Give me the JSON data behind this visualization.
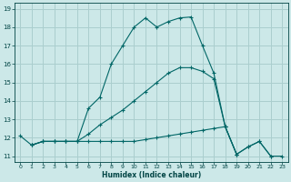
{
  "xlabel": "Humidex (Indice chaleur)",
  "bg_color": "#cce8e8",
  "grid_color": "#aacece",
  "line_color": "#006666",
  "xlim": [
    -0.5,
    23.5
  ],
  "ylim": [
    10.7,
    19.3
  ],
  "xticks": [
    0,
    1,
    2,
    3,
    4,
    5,
    6,
    7,
    8,
    9,
    10,
    11,
    12,
    13,
    14,
    15,
    16,
    17,
    18,
    19,
    20,
    21,
    22,
    23
  ],
  "yticks": [
    11,
    12,
    13,
    14,
    15,
    16,
    17,
    18,
    19
  ],
  "line1_x": [
    0,
    1,
    2,
    3,
    4,
    5,
    6,
    7,
    8,
    9,
    10,
    11,
    12,
    13,
    14,
    15,
    16,
    17,
    18,
    19,
    20,
    21,
    22
  ],
  "line1_y": [
    12.1,
    11.6,
    11.8,
    11.8,
    11.8,
    11.8,
    13.6,
    14.2,
    16.0,
    17.0,
    18.0,
    18.5,
    18.0,
    18.3,
    18.5,
    18.55,
    17.0,
    15.5,
    12.6,
    11.1,
    11.5,
    11.8,
    11.0
  ],
  "line2_x": [
    1,
    2,
    3,
    4,
    5,
    6,
    7,
    8,
    9,
    10,
    11,
    12,
    13,
    14,
    15,
    16,
    17,
    18,
    19
  ],
  "line2_y": [
    11.6,
    11.8,
    11.8,
    11.8,
    11.8,
    12.2,
    12.7,
    13.1,
    13.5,
    14.0,
    14.5,
    15.0,
    15.5,
    15.8,
    15.8,
    15.6,
    15.2,
    12.6,
    11.1
  ],
  "line3_x": [
    1,
    2,
    3,
    4,
    5,
    6,
    7,
    8,
    9,
    10,
    11,
    12,
    13,
    14,
    15,
    16,
    17,
    18,
    19,
    20,
    21,
    22,
    23
  ],
  "line3_y": [
    11.6,
    11.8,
    11.8,
    11.8,
    11.8,
    11.8,
    11.8,
    11.8,
    11.8,
    11.8,
    11.9,
    12.0,
    12.1,
    12.2,
    12.3,
    12.4,
    12.5,
    12.6,
    11.1,
    11.5,
    11.8,
    11.0,
    11.0
  ]
}
